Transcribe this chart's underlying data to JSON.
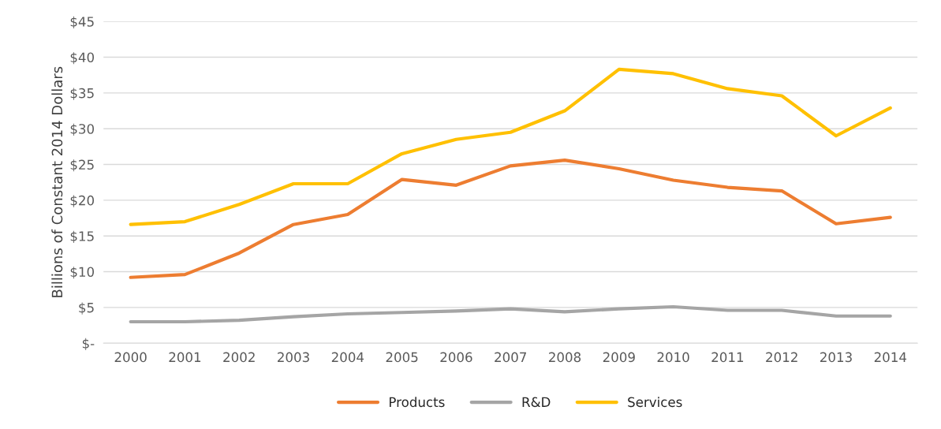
{
  "chart_data": {
    "type": "line",
    "ylabel": "Billions of Constant 2014 Dollars",
    "categories": [
      "2000",
      "2001",
      "2002",
      "2003",
      "2004",
      "2005",
      "2006",
      "2007",
      "2008",
      "2009",
      "2010",
      "2011",
      "2012",
      "2013",
      "2014"
    ],
    "series": [
      {
        "name": "Products",
        "color": "#ed7d31",
        "values": [
          9.2,
          9.6,
          12.6,
          16.6,
          18.0,
          22.9,
          22.1,
          24.8,
          25.6,
          24.4,
          22.8,
          21.8,
          21.3,
          16.7,
          17.6
        ]
      },
      {
        "name": "R&D",
        "color": "#a5a5a5",
        "values": [
          3.0,
          3.0,
          3.2,
          3.7,
          4.1,
          4.3,
          4.5,
          4.8,
          4.4,
          4.8,
          5.1,
          4.6,
          4.6,
          3.8,
          3.8
        ]
      },
      {
        "name": "Services",
        "color": "#ffc000",
        "values": [
          16.6,
          17.0,
          19.4,
          22.3,
          22.3,
          26.5,
          28.5,
          29.5,
          32.5,
          38.3,
          37.7,
          35.6,
          34.6,
          29.0,
          32.9
        ]
      }
    ],
    "ylim": [
      0,
      45
    ],
    "yticks": [
      {
        "value": 0,
        "label": "$-"
      },
      {
        "value": 5,
        "label": "$5"
      },
      {
        "value": 10,
        "label": "$10"
      },
      {
        "value": 15,
        "label": "$15"
      },
      {
        "value": 20,
        "label": "$20"
      },
      {
        "value": 25,
        "label": "$25"
      },
      {
        "value": 30,
        "label": "$30"
      },
      {
        "value": 35,
        "label": "$35"
      },
      {
        "value": 40,
        "label": "$40"
      },
      {
        "value": 45,
        "label": "$45"
      }
    ],
    "grid": "y",
    "legend": "bottom",
    "marker": "none",
    "line_style": "solid"
  }
}
